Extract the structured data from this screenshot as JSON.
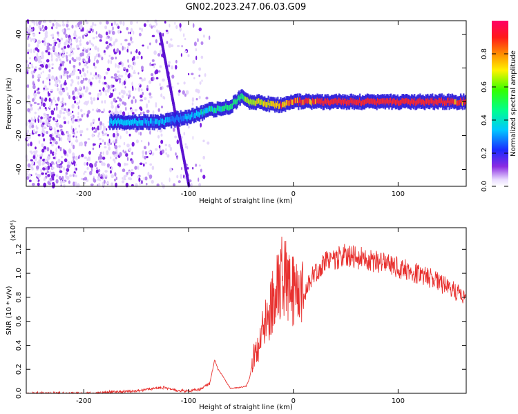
{
  "title": "GN02.2023.247.06.03.G09",
  "chart_data": [
    {
      "type": "heatmap",
      "xlabel": "Height of straight line (km)",
      "ylabel": "Frequency (Hz)",
      "xlim": [
        -255,
        165
      ],
      "ylim": [
        -50,
        48
      ],
      "xticks": [
        -200,
        -100,
        0,
        100
      ],
      "xtick_labels": [
        "-200",
        "-100",
        "0",
        "100"
      ],
      "yticks": [
        -40,
        -20,
        0,
        20,
        40
      ],
      "ytick_labels": [
        "-40",
        "-20",
        "0",
        "20",
        "40"
      ],
      "colorbar": {
        "label": "Normalized spectral amplitude",
        "range": [
          0,
          1
        ],
        "ticks": [
          0.0,
          0.2,
          0.4,
          0.6,
          0.8
        ],
        "tick_labels": [
          "0.0",
          "0.2",
          "0.4",
          "0.6",
          "0.8"
        ],
        "colormap": "rainbow (white/violet low, red high)"
      },
      "main_signal_track": {
        "description": "narrow band near 0 Hz",
        "x": [
          -175,
          -150,
          -125,
          -110,
          -100,
          -80,
          -60,
          -50,
          -40,
          -30,
          -20,
          -10,
          0,
          25,
          50,
          75,
          100,
          125,
          150,
          165
        ],
        "freq": [
          -12,
          -12,
          -12,
          -10,
          -9,
          -5,
          -3,
          3,
          -1,
          0,
          -2,
          -2,
          0,
          0,
          0,
          0,
          0,
          0,
          0,
          0
        ],
        "amplitude": [
          0.5,
          0.5,
          0.45,
          0.4,
          0.45,
          0.55,
          0.6,
          0.6,
          0.7,
          0.75,
          0.8,
          0.82,
          0.85,
          0.9,
          0.9,
          0.9,
          0.9,
          0.92,
          0.9,
          0.85
        ]
      }
    },
    {
      "type": "line",
      "xlabel": "Height of straight line (km)",
      "ylabel": "SNR (10 * v/v)",
      "y_multiplier": "(x10⁴)",
      "xlim": [
        -255,
        165
      ],
      "ylim": [
        0,
        1.38
      ],
      "xticks": [
        -200,
        -100,
        0,
        100
      ],
      "xtick_labels": [
        "-200",
        "-100",
        "0",
        "100"
      ],
      "yticks": [
        0.0,
        0.2,
        0.4,
        0.6,
        0.8,
        1.0,
        1.2
      ],
      "ytick_labels": [
        "0.0",
        "0.2",
        "0.4",
        "0.6",
        "0.8",
        "1.0",
        "1.2"
      ],
      "color": "#e8312f",
      "series": [
        {
          "x": [
            -255,
            -200,
            -150,
            -125,
            -110,
            -100,
            -90,
            -80,
            -75,
            -72,
            -68,
            -60,
            -50,
            -45,
            -42,
            -38,
            -35,
            -30,
            -20,
            -10,
            0,
            10,
            20,
            30,
            50,
            75,
            100,
            125,
            150,
            165
          ],
          "y": [
            0.0,
            0.0,
            0.02,
            0.05,
            0.02,
            0.02,
            0.03,
            0.08,
            0.28,
            0.2,
            0.15,
            0.04,
            0.05,
            0.06,
            0.12,
            0.3,
            0.35,
            0.5,
            0.75,
            1.0,
            0.85,
            0.82,
            1.0,
            1.1,
            1.15,
            1.1,
            1.05,
            0.98,
            0.88,
            0.78
          ]
        }
      ]
    }
  ]
}
